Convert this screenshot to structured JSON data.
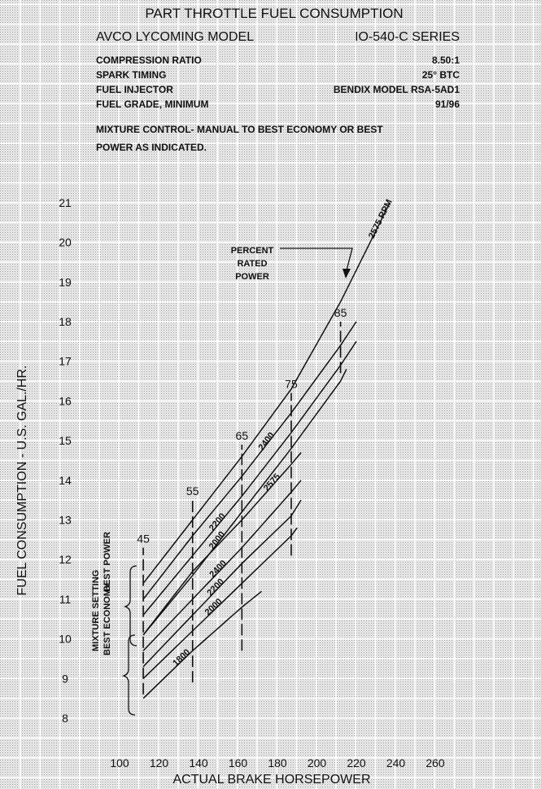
{
  "header": {
    "title": "PART THROTTLE FUEL CONSUMPTION",
    "model_label": "AVCO LYCOMING MODEL",
    "model_series": "IO-540-C SERIES",
    "specs": [
      {
        "label": "COMPRESSION RATIO",
        "value": "8.50:1"
      },
      {
        "label": "SPARK TIMING",
        "value": "25° BTC"
      },
      {
        "label": "FUEL INJECTOR",
        "value": "BENDIX MODEL RSA-5AD1"
      },
      {
        "label": "FUEL GRADE, MINIMUM",
        "value": "91/96"
      }
    ],
    "note_lines": [
      "MIXTURE CONTROL- MANUAL TO BEST ECONOMY OR BEST",
      "POWER AS INDICATED."
    ]
  },
  "chart_data": {
    "type": "line",
    "xlabel": "ACTUAL BRAKE HORSEPOWER",
    "ylabel": "FUEL CONSUMPTION - U.S. GAL./HR.",
    "xlim": [
      90,
      270
    ],
    "ylim": [
      7.5,
      21.5
    ],
    "xticks": [
      100,
      120,
      140,
      160,
      180,
      200,
      220,
      240,
      260
    ],
    "yticks": [
      8,
      9,
      10,
      11,
      12,
      13,
      14,
      15,
      16,
      17,
      18,
      19,
      20,
      21
    ],
    "grid": true,
    "mixture_setting": {
      "title": "MIXTURE SETTING",
      "best_power": "BEST POWER",
      "best_economy": "BEST ECONOMY"
    },
    "rated_power_annotation": "PERCENT RATED POWER",
    "rated_power_lines": [
      {
        "label": "45",
        "hp": 112,
        "y_range": [
          8.6,
          12.3
        ]
      },
      {
        "label": "55",
        "hp": 137,
        "y_range": [
          8.9,
          13.5
        ]
      },
      {
        "label": "65",
        "hp": 162,
        "y_range": [
          9.7,
          14.9
        ]
      },
      {
        "label": "75",
        "hp": 187,
        "y_range": [
          12.1,
          16.2
        ]
      },
      {
        "label": "85",
        "hp": 212,
        "y_range": [
          16.7,
          18.0
        ]
      }
    ],
    "series": [
      {
        "name": "2575 RPM",
        "group": "best power",
        "x": [
          112,
          137,
          162,
          187,
          212,
          237
        ],
        "y": [
          11.4,
          13.0,
          14.6,
          16.3,
          18.5,
          21.0
        ]
      },
      {
        "name": "2400",
        "group": "best power",
        "x": [
          112,
          137,
          162,
          187,
          212,
          220
        ],
        "y": [
          11.0,
          12.6,
          14.1,
          15.7,
          17.4,
          18.0
        ]
      },
      {
        "name": "2200",
        "group": "best power",
        "x": [
          112,
          137,
          162,
          187,
          212,
          220
        ],
        "y": [
          10.6,
          12.1,
          13.6,
          15.2,
          16.9,
          17.5
        ]
      },
      {
        "name": "2000",
        "group": "best power",
        "x": [
          112,
          137,
          162,
          187,
          212,
          215
        ],
        "y": [
          10.1,
          11.6,
          13.2,
          14.8,
          16.5,
          16.8
        ]
      },
      {
        "name": "2575",
        "group": "best economy",
        "x": [
          112,
          137,
          162,
          187,
          192
        ],
        "y": [
          10.1,
          11.7,
          13.0,
          14.4,
          14.7
        ]
      },
      {
        "name": "2400",
        "group": "best economy",
        "x": [
          112,
          137,
          162,
          187,
          192
        ],
        "y": [
          9.7,
          11.0,
          12.3,
          13.7,
          14.0
        ]
      },
      {
        "name": "2200",
        "group": "best economy",
        "x": [
          112,
          137,
          162,
          187,
          192
        ],
        "y": [
          9.3,
          10.6,
          11.9,
          13.1,
          13.5
        ]
      },
      {
        "name": "2000",
        "group": "best economy",
        "x": [
          112,
          137,
          162,
          187,
          190
        ],
        "y": [
          9.0,
          10.2,
          11.4,
          12.6,
          12.8
        ]
      },
      {
        "name": "1800",
        "group": "best economy",
        "x": [
          112,
          137,
          162,
          172
        ],
        "y": [
          8.5,
          9.7,
          10.8,
          11.2
        ]
      }
    ]
  }
}
